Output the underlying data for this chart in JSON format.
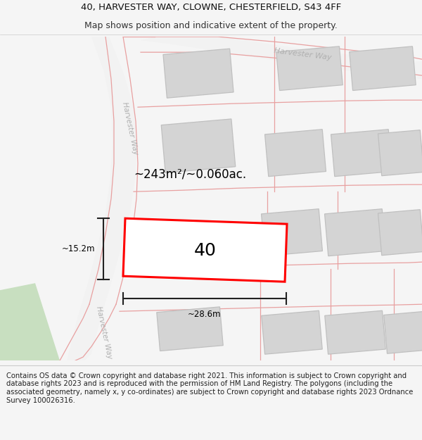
{
  "title_line1": "40, HARVESTER WAY, CLOWNE, CHESTERFIELD, S43 4FF",
  "title_line2": "Map shows position and indicative extent of the property.",
  "footer_text": "Contains OS data © Crown copyright and database right 2021. This information is subject to Crown copyright and database rights 2023 and is reproduced with the permission of HM Land Registry. The polygons (including the associated geometry, namely x, y co-ordinates) are subject to Crown copyright and database rights 2023 Ordnance Survey 100026316.",
  "area_label": "~243m²/~0.060ac.",
  "width_label": "~28.6m",
  "height_label": "~15.2m",
  "plot_number": "40",
  "bg_color": "#f5f5f5",
  "map_bg": "#ffffff",
  "bld_fill": "#d4d4d4",
  "bld_edge": "#c0c0c0",
  "road_line": "#e8a0a0",
  "road_fill": "#eeeeee",
  "highlight_red": "#ff0000",
  "dim_color": "#222222",
  "road_label_color": "#b0b0b0",
  "green_fill": "#c8dfc0",
  "title_fs": 9.5,
  "subtitle_fs": 9.0,
  "footer_fs": 7.2,
  "area_fs": 12.0,
  "num_fs": 18,
  "dim_fs": 8.5,
  "road_fs": 8.0
}
